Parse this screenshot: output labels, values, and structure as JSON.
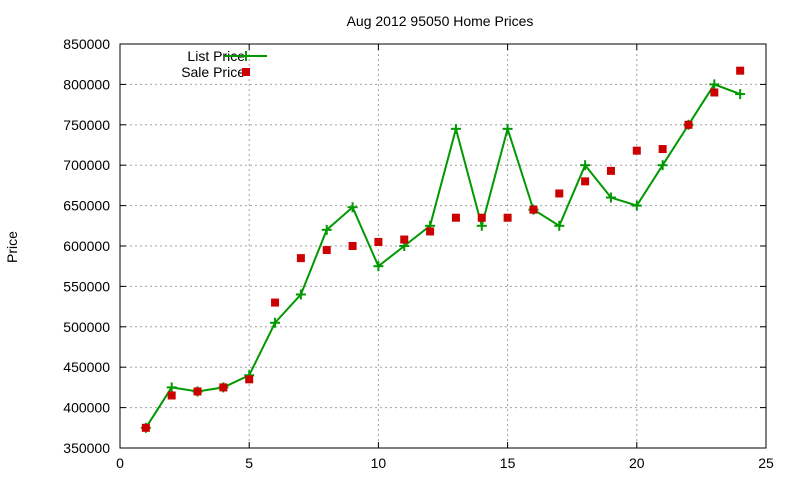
{
  "chart_data": {
    "type": "line",
    "title": "Aug 2012 95050 Home Prices",
    "xlabel": "",
    "ylabel": "Price",
    "xlim": [
      0,
      25
    ],
    "ylim": [
      350000,
      850000
    ],
    "x_ticks": [
      "0",
      "5",
      "10",
      "15",
      "20",
      "25"
    ],
    "y_ticks": [
      "350000",
      "400000",
      "450000",
      "500000",
      "550000",
      "600000",
      "650000",
      "700000",
      "750000",
      "800000",
      "850000"
    ],
    "grid": true,
    "legend_position": "top-left",
    "x": [
      1,
      2,
      3,
      4,
      5,
      6,
      7,
      8,
      9,
      10,
      11,
      12,
      13,
      14,
      15,
      16,
      17,
      18,
      19,
      20,
      21,
      22,
      23,
      24
    ],
    "series": [
      {
        "name": "List Price",
        "style": "line-with-plus-markers",
        "color": "#009900",
        "values": [
          375000,
          425000,
          420000,
          425000,
          440000,
          505000,
          540000,
          620000,
          648000,
          575000,
          600000,
          625000,
          745000,
          625000,
          745000,
          645000,
          625000,
          700000,
          660000,
          650000,
          700000,
          750000,
          800000,
          788000
        ]
      },
      {
        "name": "Sale Price",
        "style": "square-markers",
        "color": "#cc0000",
        "values": [
          375000,
          415000,
          420000,
          425000,
          435000,
          530000,
          585000,
          595000,
          600000,
          605000,
          608000,
          618000,
          635000,
          635000,
          635000,
          645000,
          665000,
          680000,
          693000,
          718000,
          720000,
          750000,
          790000,
          817000
        ]
      }
    ]
  }
}
